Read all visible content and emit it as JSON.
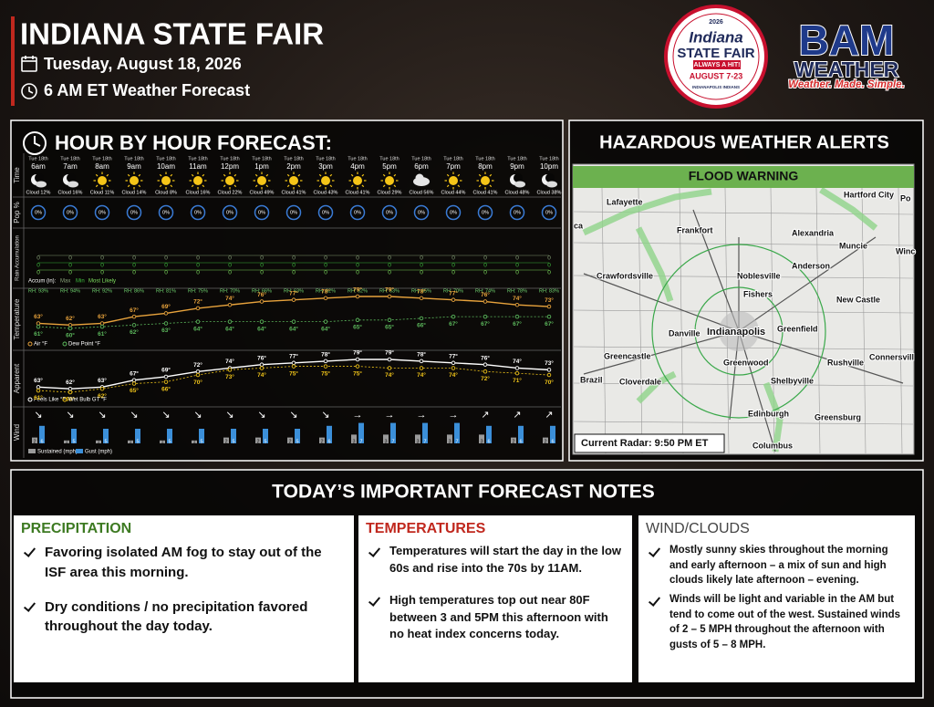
{
  "header": {
    "title": "INDIANA STATE FAIR",
    "date": "Tuesday, August 18, 2026",
    "subtitle": "6 AM ET Weather Forecast"
  },
  "logos": {
    "fair": {
      "year": "2026",
      "name": "Indiana",
      "name2": "STATE FAIR",
      "slogan": "ALWAYS A HIT!",
      "dates": "AUGUST 7-23",
      "team": "INDIANAPOLIS INDIANS"
    },
    "bam": {
      "name": "BAM",
      "sub": "WEATHER",
      "tagline": "Weather. Made. Simple."
    }
  },
  "chart_data": {
    "type": "hourly",
    "title": "HOUR BY HOUR FORECAST:",
    "row_labels": [
      "Time",
      "Pop %",
      "Rain Accumulation",
      "Temperature",
      "Apparent",
      "Wind"
    ],
    "day": "Tue 18th",
    "categories": [
      "6am",
      "7am",
      "8am",
      "9am",
      "10am",
      "11am",
      "12pm",
      "1pm",
      "2pm",
      "3pm",
      "4pm",
      "5pm",
      "6pm",
      "7pm",
      "8pm",
      "9pm",
      "10pm"
    ],
    "cloud": [
      12,
      16,
      11,
      14,
      8,
      16,
      22,
      49,
      41,
      43,
      41,
      29,
      56,
      44,
      41,
      48,
      38
    ],
    "cloud_labels": [
      "Cloud 12%",
      "Cloud 16%",
      "Cloud 11%",
      "Cloud 14%",
      "Cloud 8%",
      "Cloud 16%",
      "Cloud 22%",
      "Cloud 49%",
      "Cloud 41%",
      "Cloud 43%",
      "Cloud 41%",
      "Cloud 29%",
      "Cloud 56%",
      "Cloud 44%",
      "Cloud 41%",
      "Cloud 48%",
      "Cloud 38%"
    ],
    "pop": [
      0,
      0,
      0,
      0,
      0,
      0,
      0,
      0,
      0,
      0,
      0,
      0,
      0,
      0,
      0,
      0,
      0
    ],
    "pop_labels": [
      "0%",
      "0%",
      "0%",
      "0%",
      "0%",
      "0%",
      "0%",
      "0%",
      "0%",
      "0%",
      "0%",
      "0%",
      "0%",
      "0%",
      "0%",
      "0%",
      "0%"
    ],
    "rain_legend": "Accum (in):",
    "rain": [
      {
        "name": "Max",
        "color": "#8aa57a",
        "values": [
          0,
          0,
          0,
          0,
          0,
          0,
          0,
          0,
          0,
          0,
          0,
          0,
          0,
          0,
          0,
          0,
          0
        ]
      },
      {
        "name": "Min",
        "color": "#3fbf3f",
        "values": [
          0,
          0,
          0,
          0,
          0,
          0,
          0,
          0,
          0,
          0,
          0,
          0,
          0,
          0,
          0,
          0,
          0
        ]
      },
      {
        "name": "Most Likely",
        "color": "#7fe05f",
        "values": [
          0,
          0,
          0,
          0,
          0,
          0,
          0,
          0,
          0,
          0,
          0,
          0,
          0,
          0,
          0,
          0,
          0
        ]
      }
    ],
    "rh": [
      93,
      94,
      92,
      86,
      81,
      75,
      70,
      66,
      63,
      62,
      62,
      63,
      65,
      70,
      74,
      78,
      83
    ],
    "rh_labels": [
      "RH: 93%",
      "RH: 94%",
      "RH: 92%",
      "RH: 86%",
      "RH: 81%",
      "RH: 75%",
      "RH: 70%",
      "RH: 66%",
      "RH: 63%",
      "RH: 62%",
      "RH: 62%",
      "RH: 63%",
      "RH: 65%",
      "RH: 70%",
      "RH: 74%",
      "RH: 78%",
      "RH: 83%"
    ],
    "temperature": [
      {
        "name": "Air °F",
        "color": "#e8a33c",
        "values": [
          63,
          62,
          63,
          67,
          69,
          72,
          74,
          76,
          77,
          78,
          79,
          79,
          78,
          77,
          76,
          74,
          73
        ],
        "value_labels": [
          "63°",
          "62°",
          "63°",
          "67°",
          "69°",
          "72°",
          "74°",
          "76°",
          "77°",
          "78°",
          "79°",
          "79°",
          "78°",
          "77°",
          "76°",
          "74°",
          "73°"
        ]
      },
      {
        "name": "Dew Point °F",
        "color": "#5cb85c",
        "values": [
          61,
          60,
          61,
          62,
          63,
          64,
          64,
          64,
          64,
          64,
          65,
          65,
          66,
          67,
          67,
          67,
          67
        ],
        "value_labels": [
          "61°",
          "60°",
          "61°",
          "62°",
          "63°",
          "64°",
          "64°",
          "64°",
          "64°",
          "64°",
          "65°",
          "65°",
          "66°",
          "67°",
          "67°",
          "67°",
          "67°"
        ]
      }
    ],
    "apparent": [
      {
        "name": "Feels Like °F",
        "color": "#ffffff",
        "values": [
          63,
          62,
          63,
          67,
          69,
          72,
          74,
          76,
          77,
          78,
          79,
          79,
          78,
          77,
          76,
          74,
          73
        ],
        "value_labels": [
          "63°",
          "62°",
          "63°",
          "67°",
          "69°",
          "72°",
          "74°",
          "76°",
          "77°",
          "78°",
          "79°",
          "79°",
          "78°",
          "77°",
          "76°",
          "74°",
          "73°"
        ]
      },
      {
        "name": "Wet Bulb GT °F",
        "color": "#f0c419",
        "values": [
          61,
          60,
          62,
          65,
          66,
          70,
          73,
          74,
          75,
          75,
          75,
          74,
          74,
          74,
          72,
          71,
          70
        ],
        "value_labels": [
          "61°",
          "60°",
          "62°",
          "65°",
          "66°",
          "70°",
          "73°",
          "74°",
          "75°",
          "75°",
          "75°",
          "74°",
          "74°",
          "74°",
          "72°",
          "71°",
          "70°"
        ]
      }
    ],
    "wind_arrows": [
      "↘",
      "↘",
      "↘",
      "↘",
      "↘",
      "↘",
      "↘",
      "↘",
      "↘",
      "↘",
      "→",
      "→",
      "→",
      "→",
      "↗",
      "↗",
      "↗"
    ],
    "wind": [
      {
        "name": "Sustained (mph)",
        "color": "#9a9a9a",
        "values": [
          2,
          1,
          1,
          1,
          1,
          1,
          2,
          2,
          2,
          2,
          3,
          3,
          3,
          3,
          3,
          2,
          2
        ]
      },
      {
        "name": "Gust (mph)",
        "color": "#3b8fd9",
        "values": [
          6,
          5,
          5,
          5,
          5,
          5,
          5,
          5,
          5,
          6,
          7,
          7,
          7,
          7,
          6,
          6,
          6
        ]
      }
    ]
  },
  "alerts": {
    "title": "HAZARDOUS WEATHER ALERTS",
    "warning": "FLOOD WARNING",
    "radar": "Current Radar: 9:50 PM ET",
    "cities": [
      "Lafayette",
      "Hartford City",
      "Po",
      "ca",
      "Frankfort",
      "Alexandria",
      "Muncie",
      "Winc",
      "Anderson",
      "Crawfordsville",
      "Noblesville",
      "Fishers",
      "New Castle",
      "Danville",
      "Indianapolis",
      "Greenfield",
      "Greencastle",
      "Greenwood",
      "Rushville",
      "Connersvill",
      "Brazil",
      "Cloverdale",
      "Shelbyville",
      "Edinburgh",
      "Greensburg",
      "Columbus"
    ]
  },
  "notes": {
    "title": "TODAY’S IMPORTANT FORECAST NOTES",
    "sections": [
      {
        "heading": "PRECIPITATION",
        "color": "#3d7a22",
        "items": [
          "Favoring isolated AM fog to stay out of the ISF area this morning.",
          "Dry conditions / no precipitation favored throughout the day today."
        ]
      },
      {
        "heading": "TEMPERATURES",
        "color": "#c0281e",
        "items": [
          "Temperatures will start the day in the low 60s and rise into the 70s by 11AM.",
          "High temperatures top out near 80F between 3 and 5PM this afternoon with no heat index concerns today."
        ]
      },
      {
        "heading": "WIND/CLOUDS",
        "color": "#444444",
        "items": [
          "Mostly sunny skies throughout the morning and early afternoon – a mix of sun and high clouds likely late afternoon – evening.",
          "Winds will be light and variable in the AM but tend to come out of the west. Sustained winds of 2 – 5 MPH throughout the afternoon with gusts of 5 – 8 MPH."
        ]
      }
    ]
  }
}
